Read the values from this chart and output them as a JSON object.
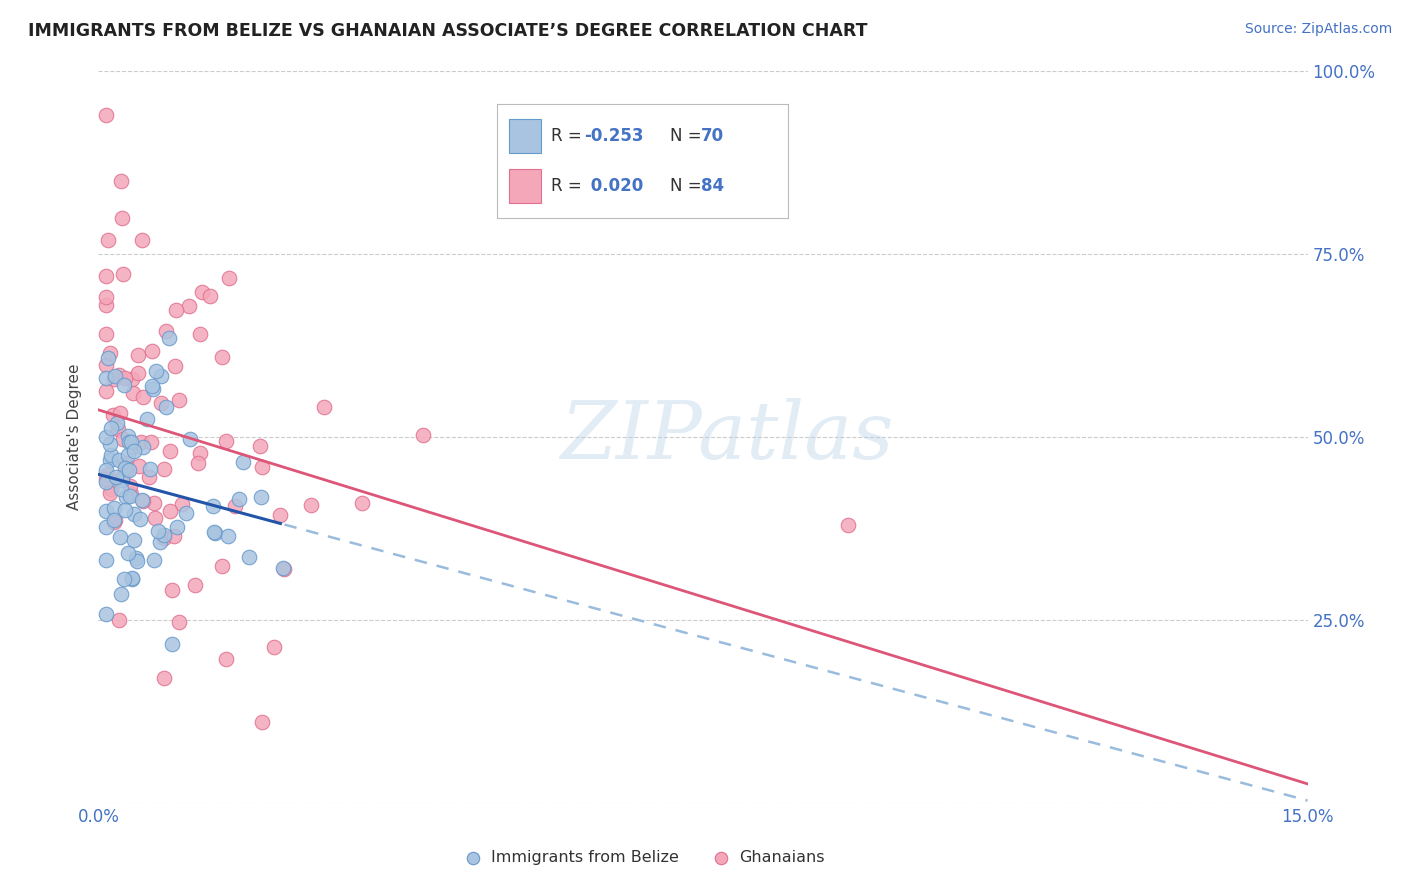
{
  "title": "IMMIGRANTS FROM BELIZE VS GHANAIAN ASSOCIATE’S DEGREE CORRELATION CHART",
  "source": "Source: ZipAtlas.com",
  "ylabel": "Associate's Degree",
  "x_min": 0.0,
  "x_max": 0.15,
  "y_min": 0.0,
  "y_max": 1.0,
  "belize_color": "#a8c4e0",
  "ghana_color": "#f4a7b9",
  "belize_edge": "#6699cc",
  "ghana_edge": "#e07090",
  "belize_line_color": "#2255aa",
  "belize_dash_color": "#99bbdd",
  "ghana_line_color": "#dd5577",
  "belize_R": -0.253,
  "belize_N": 70,
  "ghana_R": 0.02,
  "ghana_N": 84,
  "watermark": "ZIPatlas",
  "grid_color": "#cccccc",
  "background_color": "#ffffff",
  "tick_label_color": "#4472c4",
  "right_tick_labels": [
    "",
    "25.0%",
    "50.0%",
    "75.0%",
    "100.0%"
  ],
  "x_tick_labels_show": [
    "0.0%",
    "15.0%"
  ],
  "title_fontsize": 12.5,
  "source_fontsize": 10,
  "axis_label_fontsize": 11,
  "tick_fontsize": 12
}
